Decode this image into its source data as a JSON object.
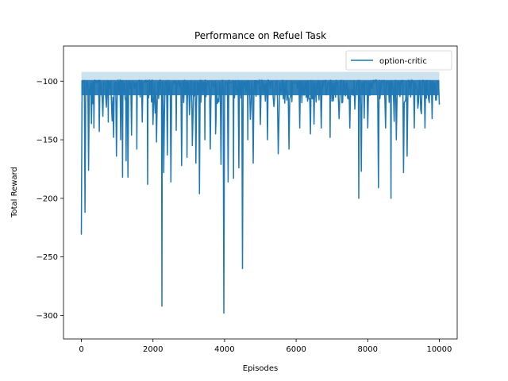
{
  "chart_data": {
    "type": "line",
    "title": "Performance on Refuel Task",
    "xlabel": "Episodes",
    "ylabel": "Total Reward",
    "xlim": [
      -500,
      10500
    ],
    "ylim": [
      -320,
      -70
    ],
    "xticks": [
      0,
      2000,
      4000,
      6000,
      8000,
      10000
    ],
    "yticks": [
      -300,
      -250,
      -200,
      -150,
      -100
    ],
    "xtick_labels": [
      "0",
      "2000",
      "4000",
      "6000",
      "8000",
      "10000"
    ],
    "ytick_labels": [
      "−300",
      "−250",
      "−200",
      "−150",
      "−100"
    ],
    "grid": false,
    "legend_position": "top-right",
    "color": "#1f77b4",
    "series": [
      {
        "name": "option-critic",
        "baseline": -101,
        "band_low": -112,
        "band_high": -92,
        "dips": [
          [
            0,
            -231
          ],
          [
            100,
            -212
          ],
          [
            200,
            -176
          ],
          [
            350,
            -140
          ],
          [
            500,
            -143
          ],
          [
            600,
            -130
          ],
          [
            750,
            -135
          ],
          [
            900,
            -148
          ],
          [
            980,
            -164
          ],
          [
            1100,
            -150
          ],
          [
            1150,
            -182
          ],
          [
            1250,
            -168
          ],
          [
            1300,
            -182
          ],
          [
            1400,
            -146
          ],
          [
            1550,
            -158
          ],
          [
            1700,
            -135
          ],
          [
            1850,
            -188
          ],
          [
            2000,
            -137
          ],
          [
            2100,
            -152
          ],
          [
            2250,
            -292
          ],
          [
            2300,
            -178
          ],
          [
            2400,
            -163
          ],
          [
            2500,
            -186
          ],
          [
            2650,
            -142
          ],
          [
            2800,
            -172
          ],
          [
            2950,
            -165
          ],
          [
            3100,
            -155
          ],
          [
            3200,
            -170
          ],
          [
            3300,
            -196
          ],
          [
            3450,
            -150
          ],
          [
            3600,
            -158
          ],
          [
            3750,
            -145
          ],
          [
            3900,
            -171
          ],
          [
            3980,
            -298
          ],
          [
            4100,
            -186
          ],
          [
            4250,
            -183
          ],
          [
            4400,
            -174
          ],
          [
            4500,
            -260
          ],
          [
            4650,
            -150
          ],
          [
            4800,
            -170
          ],
          [
            5000,
            -137
          ],
          [
            5200,
            -150
          ],
          [
            5500,
            -162
          ],
          [
            5800,
            -158
          ],
          [
            6100,
            -140
          ],
          [
            6400,
            -145
          ],
          [
            6700,
            -140
          ],
          [
            6950,
            -148
          ],
          [
            7200,
            -132
          ],
          [
            7500,
            -140
          ],
          [
            7750,
            -200
          ],
          [
            7820,
            -177
          ],
          [
            8000,
            -140
          ],
          [
            8300,
            -191
          ],
          [
            8500,
            -140
          ],
          [
            8650,
            -200
          ],
          [
            8800,
            -150
          ],
          [
            9000,
            -178
          ],
          [
            9100,
            -164
          ],
          [
            9300,
            -140
          ],
          [
            9600,
            -140
          ],
          [
            9800,
            -132
          ],
          [
            10000,
            -120
          ]
        ]
      }
    ]
  }
}
